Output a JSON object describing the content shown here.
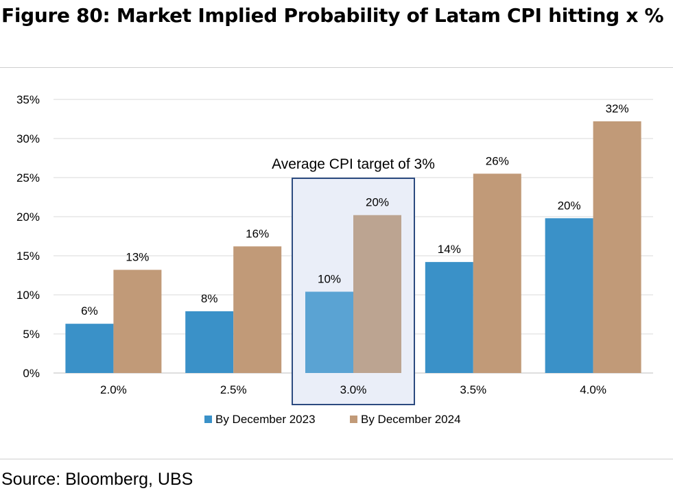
{
  "title": "Figure 80: Market Implied Probability of Latam CPI hitting x %",
  "source": "Source: Bloomberg, UBS",
  "chart_data": {
    "type": "bar",
    "categories": [
      "2.0%",
      "2.5%",
      "3.0%",
      "3.5%",
      "4.0%"
    ],
    "series": [
      {
        "name": "By December 2023",
        "values": [
          6.3,
          7.9,
          10.4,
          14.2,
          19.8
        ],
        "labels": [
          "6%",
          "8%",
          "10%",
          "14%",
          "20%"
        ],
        "color": "#3a91c8",
        "highlight_color": "#5aa3d3"
      },
      {
        "name": "By December 2024",
        "values": [
          13.2,
          16.2,
          20.2,
          25.5,
          32.2
        ],
        "labels": [
          "13%",
          "16%",
          "20%",
          "26%",
          "32%"
        ],
        "color": "#c19a78",
        "highlight_color": "#bca491"
      }
    ],
    "ylim": [
      0,
      35
    ],
    "yticks": [
      0,
      5,
      10,
      15,
      20,
      25,
      30,
      35
    ],
    "ytick_labels": [
      "0%",
      "5%",
      "10%",
      "15%",
      "20%",
      "25%",
      "30%",
      "35%"
    ],
    "grid": true,
    "legend": "bottom",
    "annotation": {
      "text": "Average CPI target of 3%",
      "category": "3.0%",
      "box_fill": "#eaeef8",
      "box_stroke": "#2b4a7f"
    }
  }
}
